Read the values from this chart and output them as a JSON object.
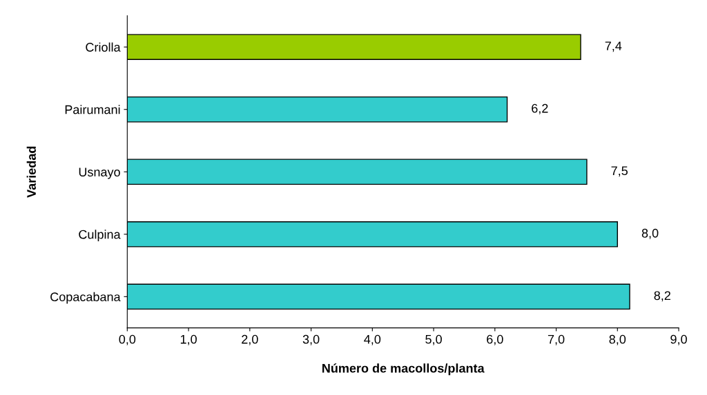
{
  "chart_data": {
    "type": "bar",
    "orientation": "horizontal",
    "xlabel": "Número de macollos/planta",
    "ylabel": "Variedad",
    "categories": [
      "Criolla",
      "Pairumani",
      "Usnayo",
      "Culpina",
      "Copacabana"
    ],
    "values": [
      7.4,
      6.2,
      7.5,
      8.0,
      8.2
    ],
    "colors": [
      "#99cc00",
      "#33cccc",
      "#33cccc",
      "#33cccc",
      "#33cccc"
    ],
    "value_labels": [
      "7,4",
      "6,2",
      "7,5",
      "8,0",
      "8,2"
    ],
    "xlim": [
      0,
      9
    ],
    "xticks": [
      {
        "value": 0,
        "label": "0,0"
      },
      {
        "value": 1,
        "label": "1,0"
      },
      {
        "value": 2,
        "label": "2,0"
      },
      {
        "value": 3,
        "label": "3,0"
      },
      {
        "value": 4,
        "label": "4,0"
      },
      {
        "value": 5,
        "label": "5,0"
      },
      {
        "value": 6,
        "label": "6,0"
      },
      {
        "value": 7,
        "label": "7,0"
      },
      {
        "value": 8,
        "label": "8,0"
      },
      {
        "value": 9,
        "label": "9,0"
      }
    ],
    "grid": false
  }
}
